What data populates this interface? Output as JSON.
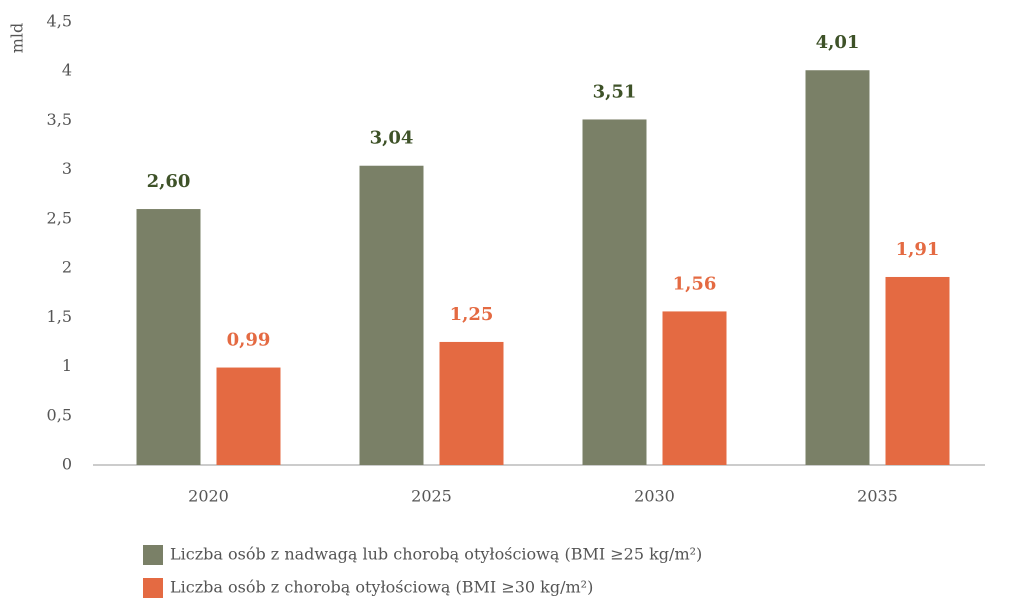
{
  "chart_data": {
    "type": "bar",
    "y_axis_label": "mld",
    "categories": [
      "2020",
      "2025",
      "2030",
      "2035"
    ],
    "series": [
      {
        "name": "Liczba osób z nadwagą lub chorobą otyłościową (BMI ≥25 kg/m²)",
        "color": "#7a8067",
        "label_color": "#3e5228",
        "values": [
          2.6,
          3.04,
          3.51,
          4.01
        ],
        "value_labels": [
          "2,60",
          "3,04",
          "3,51",
          "4,01"
        ]
      },
      {
        "name": "Liczba osób z chorobą otyłościową (BMI ≥30 kg/m²)",
        "color": "#e46a42",
        "label_color": "#e46a42",
        "values": [
          0.99,
          1.25,
          1.56,
          1.91
        ],
        "value_labels": [
          "0,99",
          "1,25",
          "1,56",
          "1,91"
        ]
      }
    ],
    "ylim": [
      0,
      4.5
    ],
    "yticks": [
      0,
      {
        "value": 0.5,
        "label": "0,5"
      },
      1,
      {
        "value": 1.5,
        "label": "1,5"
      },
      2,
      {
        "value": 2.5,
        "label": "2,5"
      },
      3,
      {
        "value": 3.5,
        "label": "3,5"
      },
      4,
      {
        "value": 4.5,
        "label": "4,5"
      }
    ],
    "grid": false
  }
}
